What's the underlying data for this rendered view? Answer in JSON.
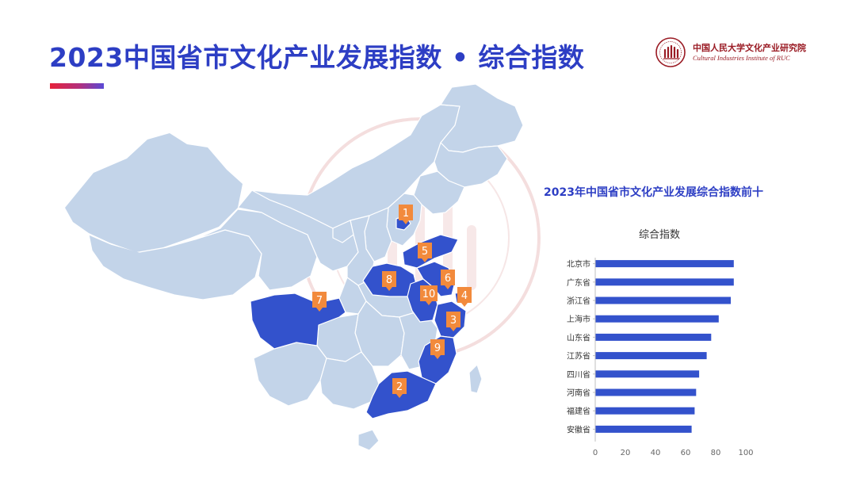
{
  "title": "2023中国省市文化产业发展指数 • 综合指数",
  "logo": {
    "name_cn": "中国人民大学文化产业研究院",
    "name_en": "Cultural Industries Institute of RUC"
  },
  "map": {
    "ranks": [
      {
        "rank": "1",
        "province": "北京市"
      },
      {
        "rank": "2",
        "province": "广东省"
      },
      {
        "rank": "3",
        "province": "浙江省"
      },
      {
        "rank": "4",
        "province": "上海市"
      },
      {
        "rank": "5",
        "province": "山东省"
      },
      {
        "rank": "6",
        "province": "江苏省"
      },
      {
        "rank": "7",
        "province": "四川省"
      },
      {
        "rank": "8",
        "province": "河南省"
      },
      {
        "rank": "9",
        "province": "福建省"
      },
      {
        "rank": "10",
        "province": "安徽省"
      }
    ],
    "colors": {
      "base": "#c3d4e9",
      "highlight": "#3352cc",
      "marker": "#f28a3c",
      "border": "#ffffff"
    }
  },
  "chart_data": {
    "type": "bar",
    "orientation": "horizontal",
    "title": "2023年中国省市文化产业发展综合指数前十",
    "series": [
      {
        "name": "综合指数",
        "values": [
          92,
          92,
          90,
          82,
          77,
          74,
          69,
          67,
          66,
          64
        ]
      }
    ],
    "categories": [
      "北京市",
      "广东省",
      "浙江省",
      "上海市",
      "山东省",
      "江苏省",
      "四川省",
      "河南省",
      "福建省",
      "安徽省"
    ],
    "xlim": [
      0,
      100
    ],
    "xticks": [
      "0",
      "20",
      "40",
      "60",
      "80",
      "100"
    ],
    "grid": false,
    "bar_color": "#3352cc"
  }
}
